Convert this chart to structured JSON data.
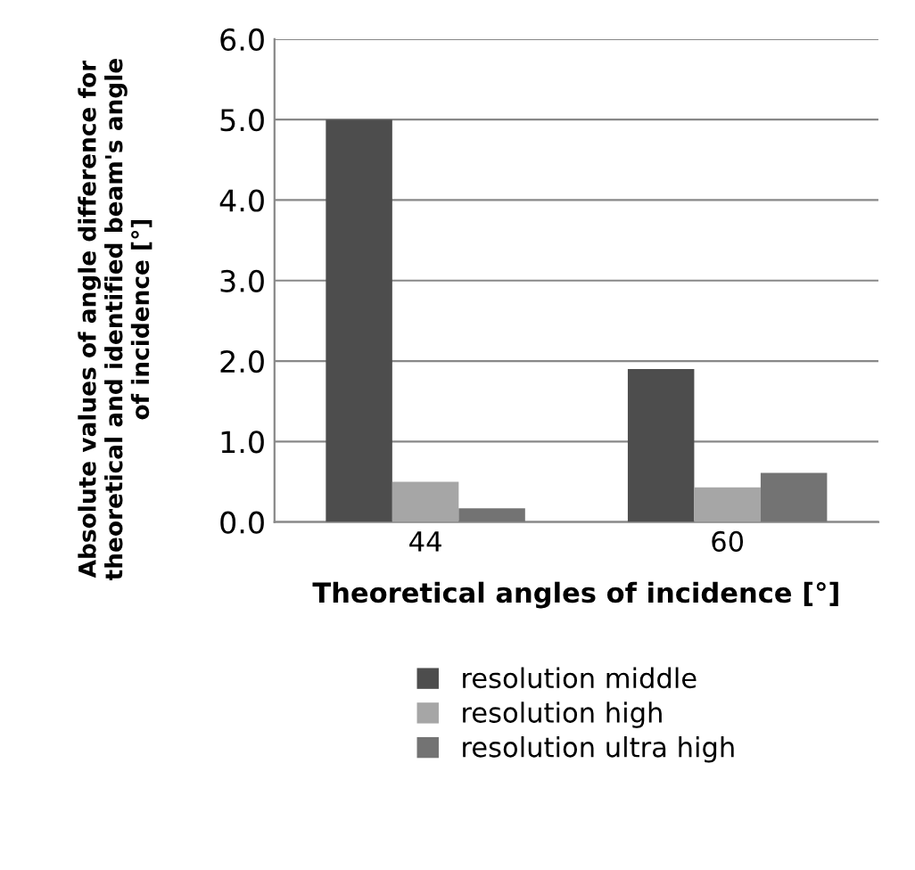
{
  "chart_data": {
    "type": "bar",
    "xlabel": "Theoretical angles of incidence [°]",
    "ylabel": "Absolute values of angle difference for\ntheoretical and identified beam's angle\nof incidence [°]",
    "categories": [
      "44",
      "60"
    ],
    "series": [
      {
        "name": "resolution middle",
        "color": "#4d4d4d",
        "values": [
          5.0,
          1.9
        ]
      },
      {
        "name": "resolution high",
        "color": "#a6a6a6",
        "values": [
          0.5,
          0.43
        ]
      },
      {
        "name": "resolution ultra high",
        "color": "#737373",
        "values": [
          0.17,
          0.61
        ]
      }
    ],
    "ylim": [
      0,
      6
    ],
    "yticks": [
      {
        "value": 0,
        "label": "0.0"
      },
      {
        "value": 1,
        "label": "1.0"
      },
      {
        "value": 2,
        "label": "2.0"
      },
      {
        "value": 3,
        "label": "3.0"
      },
      {
        "value": 4,
        "label": "4.0"
      },
      {
        "value": 5,
        "label": "5.0"
      },
      {
        "value": 6,
        "label": "6.0"
      }
    ],
    "grid": "y",
    "legend": "bottom"
  }
}
